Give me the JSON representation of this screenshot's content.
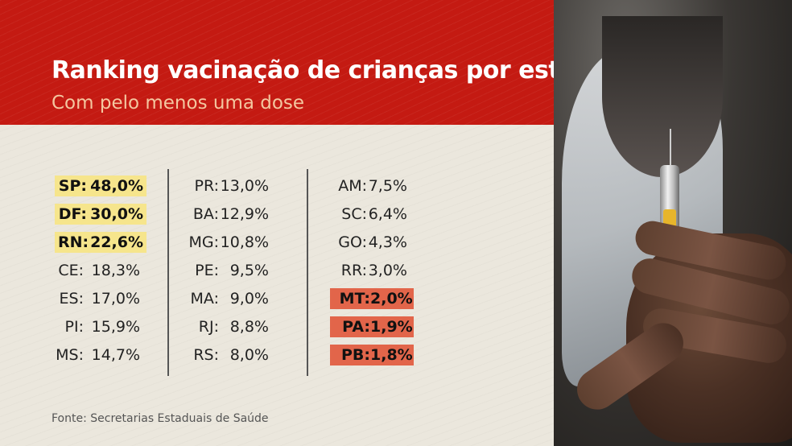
{
  "header": {
    "title": "Ranking vacinação de crianças por estado",
    "subtitle": "Com pelo menos uma dose"
  },
  "colors": {
    "header_bg": "#c41a12",
    "highlight_top": "#f6e58c",
    "highlight_bottom": "#e2654a"
  },
  "columns": [
    {
      "rows": [
        {
          "state": "SP:",
          "value": "48,0%",
          "highlight": "top"
        },
        {
          "state": "DF:",
          "value": "30,0%",
          "highlight": "top"
        },
        {
          "state": "RN:",
          "value": "22,6%",
          "highlight": "top"
        },
        {
          "state": "CE:",
          "value": "18,3%",
          "highlight": "none"
        },
        {
          "state": "ES:",
          "value": "17,0%",
          "highlight": "none"
        },
        {
          "state": "PI:",
          "value": "15,9%",
          "highlight": "none"
        },
        {
          "state": "MS:",
          "value": "14,7%",
          "highlight": "none"
        }
      ]
    },
    {
      "rows": [
        {
          "state": "PR:",
          "value": "13,0%",
          "highlight": "none"
        },
        {
          "state": "BA:",
          "value": "12,9%",
          "highlight": "none"
        },
        {
          "state": "MG:",
          "value": "10,8%",
          "highlight": "none"
        },
        {
          "state": "PE:",
          "value": "9,5%",
          "highlight": "none"
        },
        {
          "state": "MA:",
          "value": "9,0%",
          "highlight": "none"
        },
        {
          "state": "RJ:",
          "value": "8,8%",
          "highlight": "none"
        },
        {
          "state": "RS:",
          "value": "8,0%",
          "highlight": "none"
        }
      ]
    },
    {
      "rows": [
        {
          "state": "AM:",
          "value": "7,5%",
          "highlight": "none"
        },
        {
          "state": "SC:",
          "value": "6,4%",
          "highlight": "none"
        },
        {
          "state": "GO:",
          "value": "4,3%",
          "highlight": "none"
        },
        {
          "state": "RR:",
          "value": "3,0%",
          "highlight": "none"
        },
        {
          "state": "MT:",
          "value": "2,0%",
          "highlight": "bottom"
        },
        {
          "state": "PA:",
          "value": "1,9%",
          "highlight": "bottom"
        },
        {
          "state": "PB:",
          "value": "1,8%",
          "highlight": "bottom"
        }
      ]
    }
  ],
  "footer": {
    "source": "Fonte: Secretarias Estaduais de Saúde"
  },
  "photo": {
    "subject": "hand holding vaccine syringe"
  }
}
